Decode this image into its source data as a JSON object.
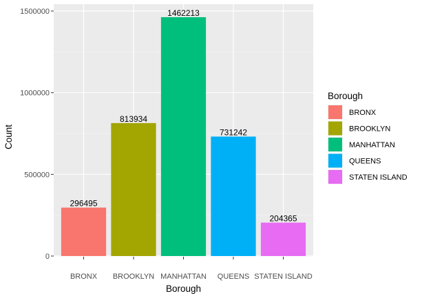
{
  "chart_data": {
    "type": "bar",
    "categories": [
      "BRONX",
      "BROOKLYN",
      "MANHATTAN",
      "QUEENS",
      "STATEN ISLAND"
    ],
    "values": [
      296495,
      813934,
      1462213,
      731242,
      204365
    ],
    "data_labels": [
      "296495",
      "813934",
      "1462213",
      "731242",
      "204365"
    ],
    "colors": [
      "#F8766D",
      "#A3A500",
      "#00BF7D",
      "#00B0F6",
      "#E76BF3"
    ],
    "xlabel": "Borough",
    "ylabel": "Count",
    "ylim": [
      0,
      1535000
    ],
    "yticks": [
      0,
      500000,
      1000000,
      1500000
    ],
    "ytick_labels": [
      "0",
      "500000",
      "1000000",
      "1500000"
    ],
    "grid": true,
    "panel_background": "#EBEBEB",
    "legend": {
      "title": "Borough",
      "position": "right",
      "entries": [
        "BRONX",
        "BROOKLYN",
        "MANHATTAN",
        "QUEENS",
        "STATEN ISLAND"
      ]
    }
  }
}
